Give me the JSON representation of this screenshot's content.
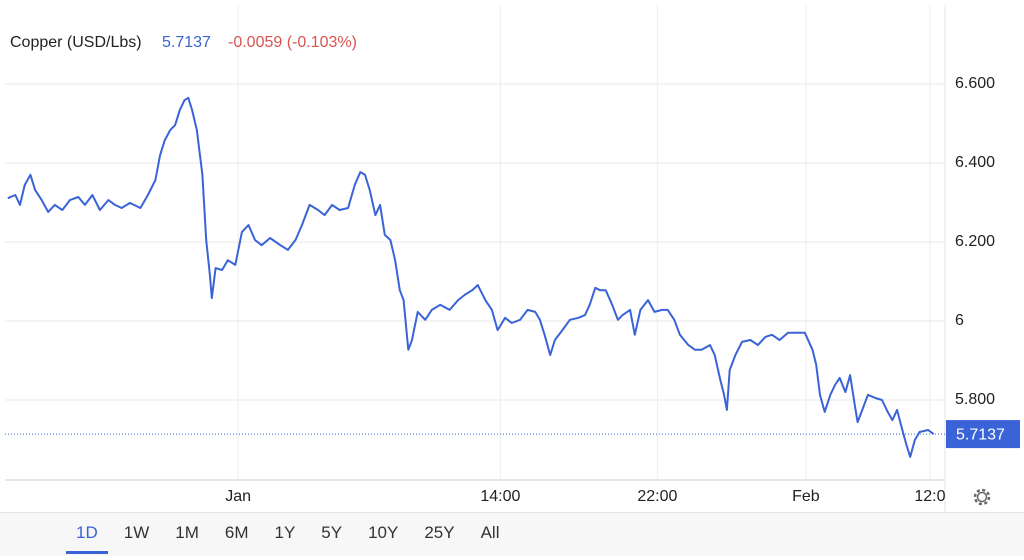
{
  "chart_data": {
    "type": "line",
    "title": "Copper (USD/Lbs)",
    "change": "-0.0059 (-0.103%)",
    "color": "#3a63d8",
    "change_color": "#d9534f",
    "x": [
      0.3,
      1.1,
      1.6,
      2.1,
      2.7,
      3.2,
      3.9,
      4.6,
      5.3,
      6.1,
      6.9,
      7.8,
      8.5,
      9.3,
      10.1,
      11,
      11.7,
      12.4,
      13.3,
      14.4,
      15.2,
      16,
      16.5,
      17,
      17.6,
      18.1,
      18.6,
      19.1,
      19.5,
      19.9,
      20.4,
      21,
      21.4,
      21.8,
      22,
      22.4,
      23.1,
      23.7,
      24.5,
      25.2,
      25.9,
      26.6,
      27.3,
      28.2,
      29.3,
      30.1,
      30.9,
      31.6,
      32.4,
      33.3,
      34,
      34.8,
      35.6,
      36.5,
      37.2,
      37.8,
      38.3,
      38.8,
      39.4,
      39.9,
      40.4,
      41,
      41.5,
      42,
      42.4,
      42.9,
      43.3,
      43.9,
      44.7,
      45.4,
      46.3,
      47.3,
      48.2,
      48.9,
      49.7,
      50.3,
      51.1,
      51.8,
      52.4,
      53.2,
      53.9,
      54.8,
      55.6,
      56.4,
      56.9,
      57.4,
      58,
      58.5,
      59.3,
      60.1,
      61,
      61.7,
      62.2,
      62.8,
      63.3,
      63.9,
      64.6,
      65.2,
      65.7,
      66.5,
      67,
      67.6,
      68.4,
      69.1,
      69.9,
      70.5,
      71.2,
      71.8,
      72.7,
      73.4,
      74.1,
      75,
      75.5,
      76.1,
      76.5,
      76.8,
      77.1,
      77.7,
      78.4,
      79.3,
      80.1,
      80.9,
      81.6,
      82.4,
      83.3,
      84.1,
      85.1,
      85.9,
      86.3,
      86.7,
      87.2,
      87.8,
      88.3,
      88.8,
      89.4,
      89.9,
      90.4,
      90.7,
      91.2,
      91.8,
      92.6,
      93.3,
      93.9,
      94.4,
      94.9,
      95.4,
      95.9,
      96.3,
      96.8,
      97.3,
      98.2,
      98.8
    ],
    "values": [
      6.311,
      6.319,
      6.294,
      6.344,
      6.37,
      6.332,
      6.306,
      6.276,
      6.294,
      6.281,
      6.306,
      6.314,
      6.294,
      6.319,
      6.281,
      6.306,
      6.294,
      6.286,
      6.299,
      6.286,
      6.319,
      6.357,
      6.42,
      6.458,
      6.484,
      6.496,
      6.534,
      6.559,
      6.565,
      6.534,
      6.484,
      6.37,
      6.205,
      6.116,
      6.058,
      6.134,
      6.129,
      6.154,
      6.142,
      6.225,
      6.243,
      6.205,
      6.192,
      6.21,
      6.192,
      6.18,
      6.205,
      6.243,
      6.294,
      6.281,
      6.268,
      6.294,
      6.281,
      6.286,
      6.344,
      6.377,
      6.37,
      6.332,
      6.268,
      6.294,
      6.218,
      6.205,
      6.154,
      6.078,
      6.053,
      5.927,
      5.952,
      6.023,
      6.003,
      6.028,
      6.041,
      6.028,
      6.053,
      6.066,
      6.078,
      6.091,
      6.053,
      6.028,
      5.977,
      6.008,
      5.995,
      6.003,
      6.028,
      6.023,
      6.003,
      5.965,
      5.914,
      5.952,
      5.977,
      6.003,
      6.008,
      6.015,
      6.041,
      6.084,
      6.078,
      6.078,
      6.041,
      6.003,
      6.015,
      6.028,
      5.965,
      6.028,
      6.053,
      6.023,
      6.028,
      6.028,
      6.003,
      5.965,
      5.939,
      5.927,
      5.927,
      5.939,
      5.914,
      5.851,
      5.813,
      5.775,
      5.876,
      5.914,
      5.947,
      5.952,
      5.939,
      5.96,
      5.965,
      5.952,
      5.97,
      5.97,
      5.97,
      5.927,
      5.889,
      5.813,
      5.77,
      5.813,
      5.838,
      5.856,
      5.82,
      5.863,
      5.787,
      5.744,
      5.775,
      5.813,
      5.805,
      5.8,
      5.77,
      5.749,
      5.775,
      5.729,
      5.686,
      5.656,
      5.699,
      5.719,
      5.724,
      5.7137
    ],
    "xlim": [
      0,
      100
    ],
    "ylim": [
      5.6,
      6.8
    ],
    "yticks": [
      {
        "value": 5.8,
        "label": "5.800"
      },
      6,
      {
        "value": 6.2,
        "label": "6.200"
      },
      {
        "value": 6.4,
        "label": "6.400"
      },
      {
        "value": 6.6,
        "label": "6.600"
      }
    ],
    "xticks": [
      {
        "value": 24.8,
        "label": "Jan"
      },
      {
        "value": 52.7,
        "label": "14:00"
      },
      {
        "value": 69.4,
        "label": "22:00"
      },
      {
        "value": 85.2,
        "label": "Feb"
      },
      {
        "value": 98.4,
        "label": "12:0"
      }
    ],
    "grid": true
  },
  "toolbar": {
    "buttons": [
      "1D",
      "1W",
      "1M",
      "6M",
      "1Y",
      "5Y",
      "10Y",
      "25Y",
      "All"
    ]
  }
}
